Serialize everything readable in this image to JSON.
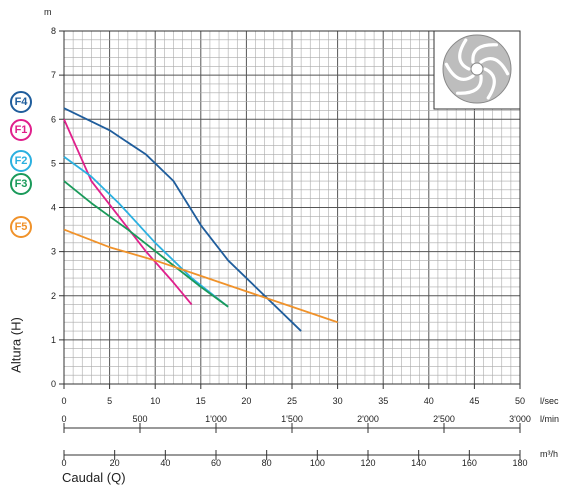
{
  "chart_data": {
    "type": "line",
    "y_unit": "m",
    "ylabel": "Altura (H)",
    "xlabel": "Caudal (Q)",
    "ylim": [
      0,
      8
    ],
    "xlim": [
      0,
      50
    ],
    "y_ticks": [
      "0",
      "1",
      "2",
      "3",
      "4",
      "5",
      "6",
      "7",
      "8"
    ],
    "x_axes": [
      {
        "unit": "l/sec",
        "ticks": [
          0,
          5,
          10,
          15,
          20,
          25,
          30,
          35,
          40,
          45,
          50
        ],
        "labels": [
          "0",
          "5",
          "10",
          "15",
          "20",
          "25",
          "30",
          "35",
          "40",
          "45",
          "50"
        ]
      },
      {
        "unit": "l/min",
        "ticks": [
          0,
          500,
          1000,
          1500,
          2000,
          2500,
          3000
        ],
        "labels": [
          "0",
          "500",
          "1'000",
          "1'500",
          "2'000",
          "2'500",
          "3'000"
        ]
      },
      {
        "unit": "m³/h",
        "ticks": [
          0,
          20,
          40,
          60,
          80,
          100,
          120,
          140,
          160,
          180
        ],
        "labels": [
          "0",
          "20",
          "40",
          "60",
          "80",
          "100",
          "120",
          "140",
          "160",
          "180"
        ]
      }
    ],
    "grid": true,
    "series": [
      {
        "name": "F4",
        "color": "#1f5d9c",
        "x": [
          0,
          5,
          9,
          12,
          15,
          18,
          22,
          26
        ],
        "y": [
          6.25,
          5.75,
          5.2,
          4.6,
          3.6,
          2.8,
          2.0,
          1.2
        ]
      },
      {
        "name": "F1",
        "color": "#e0208c",
        "x": [
          0,
          3,
          6,
          9,
          12,
          14
        ],
        "y": [
          6.0,
          4.6,
          3.8,
          3.0,
          2.3,
          1.8
        ]
      },
      {
        "name": "F2",
        "color": "#2bb0e0",
        "x": [
          0,
          3,
          6,
          10,
          14,
          18
        ],
        "y": [
          5.15,
          4.7,
          4.1,
          3.2,
          2.4,
          1.75
        ]
      },
      {
        "name": "F3",
        "color": "#1a9a5a",
        "x": [
          0,
          3,
          7,
          11,
          15,
          18
        ],
        "y": [
          4.6,
          4.1,
          3.5,
          2.85,
          2.2,
          1.75
        ]
      },
      {
        "name": "F5",
        "color": "#f0922a",
        "x": [
          0,
          5,
          10,
          15,
          20,
          25,
          30
        ],
        "y": [
          3.5,
          3.1,
          2.8,
          2.45,
          2.1,
          1.75,
          1.4
        ]
      }
    ]
  }
}
